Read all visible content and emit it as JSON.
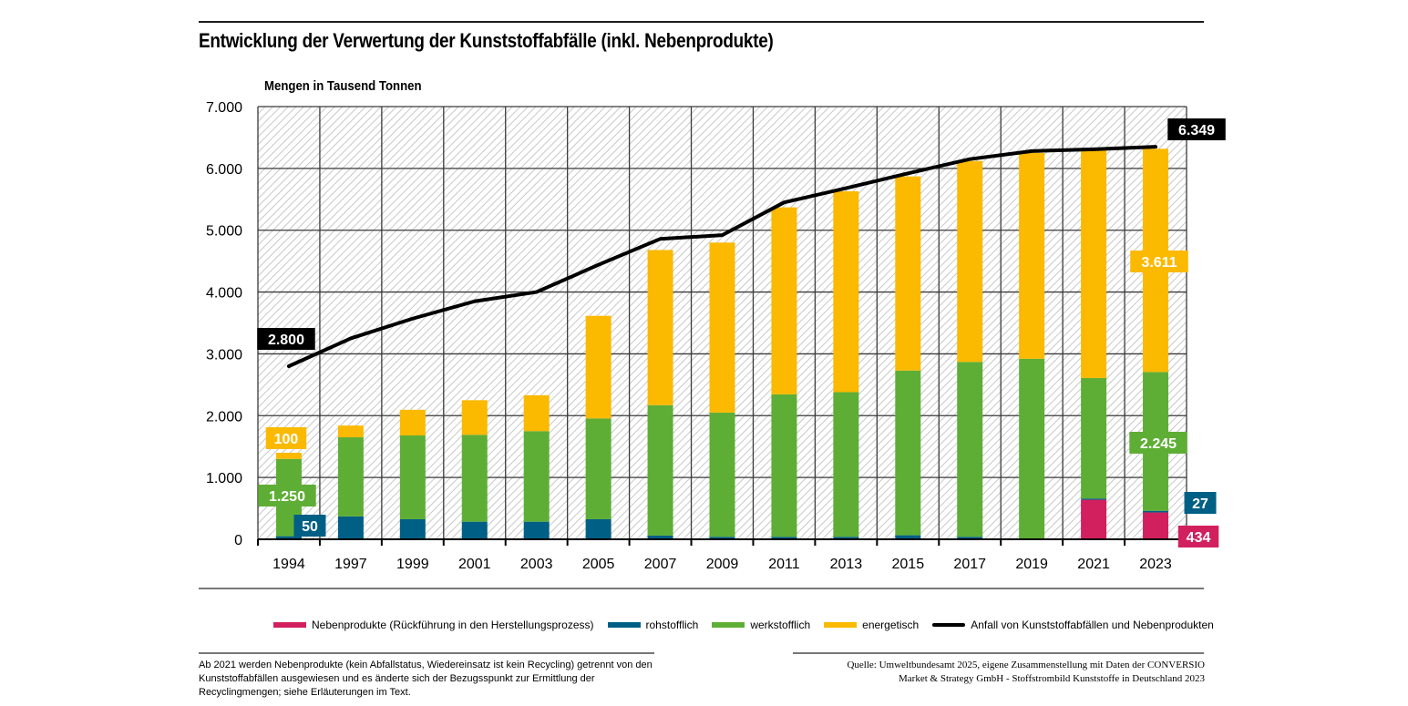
{
  "header": {
    "title": "Entwicklung der Verwertung der Kunststoffabfälle (inkl. Nebenprodukte)",
    "unit_label": "Mengen in Tausend Tonnen"
  },
  "colors": {
    "nebenprodukte": "#d21f5e",
    "rohstofflich": "#005f85",
    "werkstofflich": "#5eae35",
    "energetisch": "#fbb900",
    "line": "#000000"
  },
  "chart_data": {
    "type": "bar",
    "stacked": true,
    "title": "Entwicklung der Verwertung der Kunststoffabfälle (inkl. Nebenprodukte)",
    "ylabel": "Mengen in Tausend Tonnen",
    "xlabel": "",
    "ylim": [
      0,
      7000
    ],
    "yticks": [
      0,
      1000,
      2000,
      3000,
      4000,
      5000,
      6000,
      7000
    ],
    "ytick_labels": [
      "0",
      "1.000",
      "2.000",
      "3.000",
      "4.000",
      "5.000",
      "6.000",
      "7.000"
    ],
    "grid": true,
    "legend_position": "bottom",
    "categories": [
      "1994",
      "1997",
      "1999",
      "2001",
      "2003",
      "2005",
      "2007",
      "2009",
      "2011",
      "2013",
      "2015",
      "2017",
      "2019",
      "2021",
      "2023"
    ],
    "series": [
      {
        "name": "Nebenprodukte (Rückführung in den Herstellungsprozess)",
        "key": "nebenprodukte",
        "values": [
          0,
          0,
          0,
          0,
          0,
          0,
          0,
          0,
          0,
          0,
          0,
          0,
          0,
          640,
          434
        ]
      },
      {
        "name": "rohstofflich",
        "key": "rohstofflich",
        "values": [
          50,
          370,
          325,
          285,
          285,
          325,
          60,
          40,
          40,
          40,
          65,
          40,
          0,
          20,
          27
        ]
      },
      {
        "name": "werkstofflich",
        "key": "werkstofflich",
        "values": [
          1250,
          1280,
          1355,
          1405,
          1465,
          1630,
          2110,
          2010,
          2305,
          2340,
          2665,
          2830,
          2920,
          1950,
          2245
        ]
      },
      {
        "name": "energetisch",
        "key": "energetisch",
        "values": [
          100,
          190,
          415,
          560,
          580,
          1660,
          2510,
          2750,
          3025,
          3250,
          3140,
          3250,
          3330,
          3680,
          3611
        ]
      }
    ],
    "line_series": {
      "name": "Anfall von Kunststoffabfällen und Nebenprodukten",
      "values": [
        2800,
        3250,
        3570,
        3850,
        4000,
        4440,
        4860,
        4920,
        5450,
        5680,
        5920,
        6150,
        6280,
        6310,
        6349
      ]
    },
    "annotations": [
      {
        "category": "1994",
        "series": "energetisch",
        "label": "100"
      },
      {
        "category": "1994",
        "series": "werkstofflich",
        "label": "1.250"
      },
      {
        "category": "1994",
        "series": "rohstofflich",
        "label": "50"
      },
      {
        "category": "1994",
        "series": "line",
        "label": "2.800"
      },
      {
        "category": "2023",
        "series": "line",
        "label": "6.349"
      },
      {
        "category": "2023",
        "series": "energetisch",
        "label": "3.611"
      },
      {
        "category": "2023",
        "series": "werkstofflich",
        "label": "2.245"
      },
      {
        "category": "2023",
        "series": "rohstofflich",
        "label": "27"
      },
      {
        "category": "2023",
        "series": "nebenprodukte",
        "label": "434"
      }
    ]
  },
  "legend": {
    "items": [
      {
        "key": "nebenprodukte",
        "label": "Nebenprodukte (Rückführung in den Herstellungsprozess)"
      },
      {
        "key": "rohstofflich",
        "label": "rohstofflich"
      },
      {
        "key": "werkstofflich",
        "label": "werkstofflich"
      },
      {
        "key": "energetisch",
        "label": "energetisch"
      },
      {
        "key": "line",
        "label": "Anfall von Kunststoffabfällen und Nebenprodukten"
      }
    ]
  },
  "footer": {
    "note": "Ab 2021 werden Nebenprodukte (kein Abfallstatus, Wiedereinsatz ist kein Recycling) getrennt von den Kunststoffabfällen ausgewiesen und es änderte sich der Bezugsspunkt zur Ermittlung der Recyclingmengen; siehe Erläuterungen im Text.",
    "source_line1": "Quelle: Umweltbundesamt 2025, eigene Zusammenstellung mit Daten der CONVERSIO",
    "source_line2": "Market & Strategy GmbH - Stoffstrombild Kunststoffe in Deutschland 2023"
  }
}
